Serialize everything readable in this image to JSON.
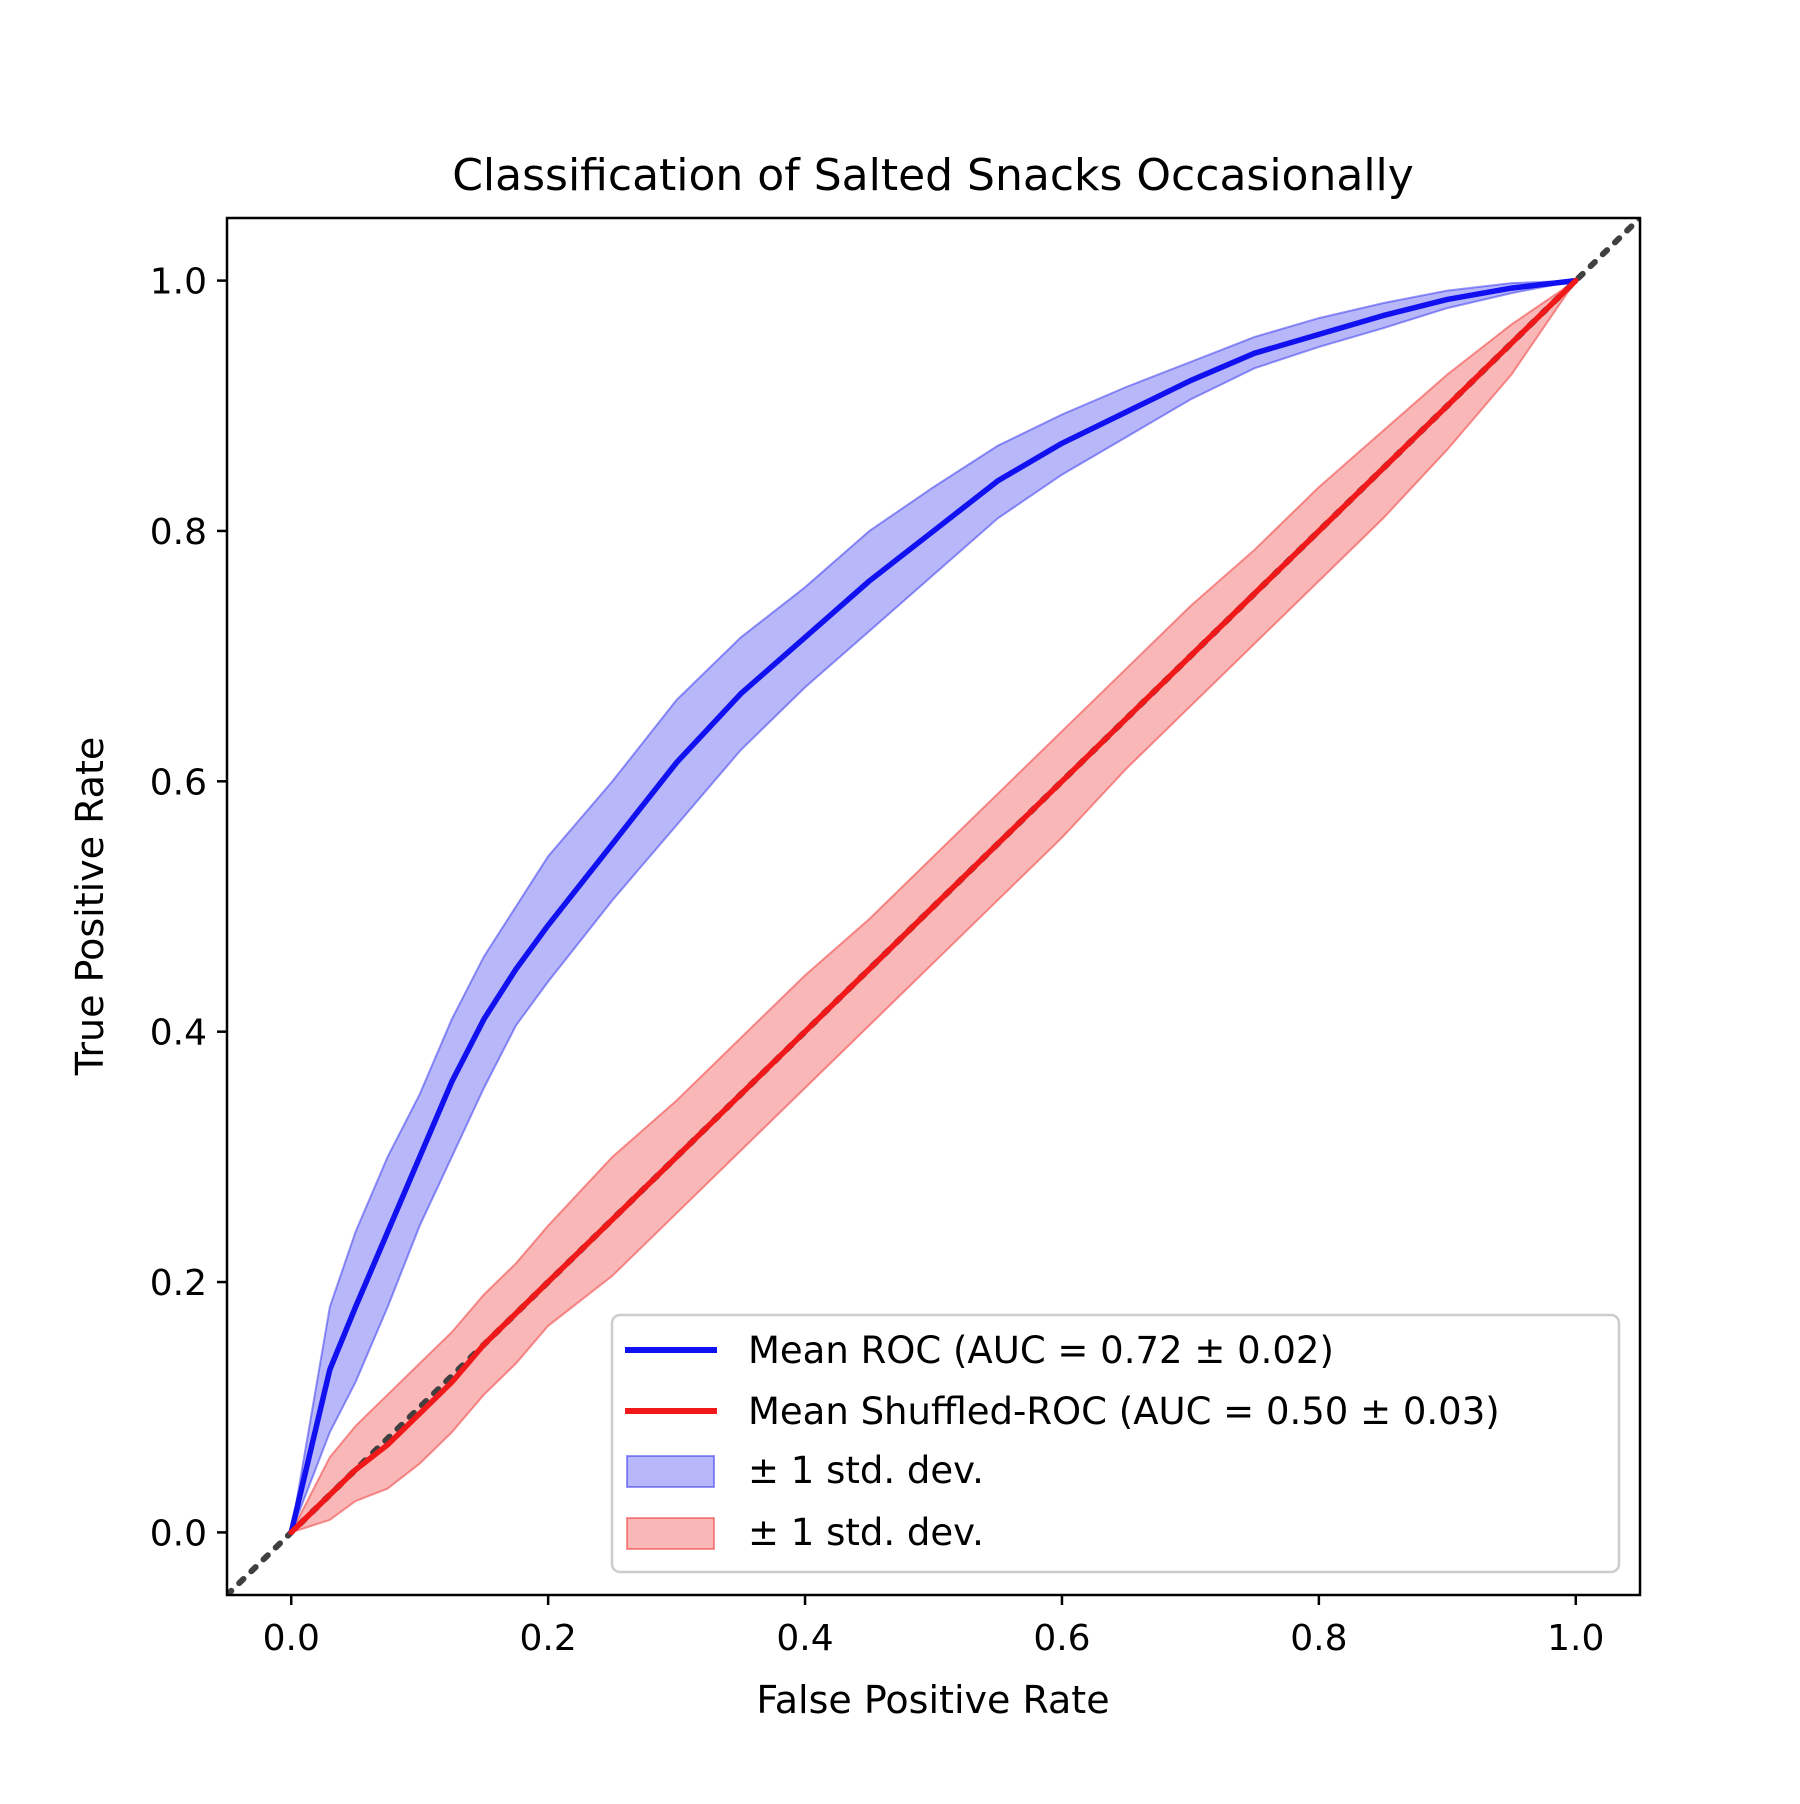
{
  "chart_data": {
    "type": "line",
    "title": "Classification of Salted Snacks Occasionally",
    "xlabel": "False Positive Rate",
    "ylabel": "True Positive Rate",
    "xlim": [
      -0.05,
      1.05
    ],
    "ylim": [
      -0.05,
      1.05
    ],
    "xticks": [
      "0.0",
      "0.2",
      "0.4",
      "0.6",
      "0.8",
      "1.0"
    ],
    "yticks": [
      "0.0",
      "0.2",
      "0.4",
      "0.6",
      "0.8",
      "1.0"
    ],
    "grid": false,
    "legend_position": "lower-right",
    "x": [
      0.0,
      0.03,
      0.05,
      0.075,
      0.1,
      0.125,
      0.15,
      0.175,
      0.2,
      0.25,
      0.3,
      0.35,
      0.4,
      0.45,
      0.5,
      0.55,
      0.6,
      0.65,
      0.7,
      0.75,
      0.8,
      0.85,
      0.9,
      0.95,
      1.0
    ],
    "series": [
      {
        "name": "Mean ROC (AUC = 0.72 ± 0.02)",
        "color": "#1010f0",
        "values": [
          0.0,
          0.13,
          0.18,
          0.24,
          0.3,
          0.36,
          0.41,
          0.45,
          0.485,
          0.55,
          0.615,
          0.67,
          0.715,
          0.76,
          0.8,
          0.84,
          0.87,
          0.895,
          0.92,
          0.942,
          0.957,
          0.972,
          0.985,
          0.994,
          1.0
        ]
      },
      {
        "name": "Mean Shuffled-ROC (AUC = 0.50 ± 0.03)",
        "color": "#f01818",
        "values": [
          0.0,
          0.03,
          0.05,
          0.07,
          0.095,
          0.12,
          0.15,
          0.175,
          0.2,
          0.25,
          0.3,
          0.35,
          0.4,
          0.45,
          0.5,
          0.55,
          0.6,
          0.65,
          0.7,
          0.75,
          0.8,
          0.85,
          0.9,
          0.95,
          1.0
        ]
      }
    ],
    "bands": [
      {
        "name": "± 1 std. dev.",
        "color": "#3030f0",
        "upper": [
          0.0,
          0.18,
          0.24,
          0.3,
          0.35,
          0.41,
          0.46,
          0.5,
          0.54,
          0.6,
          0.665,
          0.715,
          0.755,
          0.8,
          0.835,
          0.868,
          0.893,
          0.915,
          0.935,
          0.955,
          0.97,
          0.982,
          0.992,
          0.998,
          1.0
        ],
        "lower": [
          0.0,
          0.08,
          0.12,
          0.18,
          0.245,
          0.3,
          0.355,
          0.405,
          0.44,
          0.505,
          0.565,
          0.625,
          0.675,
          0.72,
          0.765,
          0.81,
          0.845,
          0.875,
          0.905,
          0.93,
          0.947,
          0.962,
          0.978,
          0.99,
          1.0
        ]
      },
      {
        "name": "± 1 std. dev.",
        "color": "#f03030",
        "upper": [
          0.0,
          0.06,
          0.085,
          0.11,
          0.135,
          0.16,
          0.19,
          0.215,
          0.245,
          0.3,
          0.345,
          0.395,
          0.445,
          0.49,
          0.54,
          0.59,
          0.64,
          0.69,
          0.74,
          0.785,
          0.835,
          0.88,
          0.925,
          0.965,
          1.0
        ],
        "lower": [
          0.0,
          0.01,
          0.025,
          0.035,
          0.055,
          0.08,
          0.11,
          0.135,
          0.165,
          0.205,
          0.255,
          0.305,
          0.355,
          0.405,
          0.455,
          0.505,
          0.555,
          0.61,
          0.66,
          0.71,
          0.76,
          0.81,
          0.865,
          0.925,
          1.0
        ]
      }
    ],
    "reference_line": {
      "style": "dotted",
      "color": "#404040",
      "from": [
        -0.05,
        -0.05
      ],
      "to": [
        1.05,
        1.05
      ]
    }
  }
}
